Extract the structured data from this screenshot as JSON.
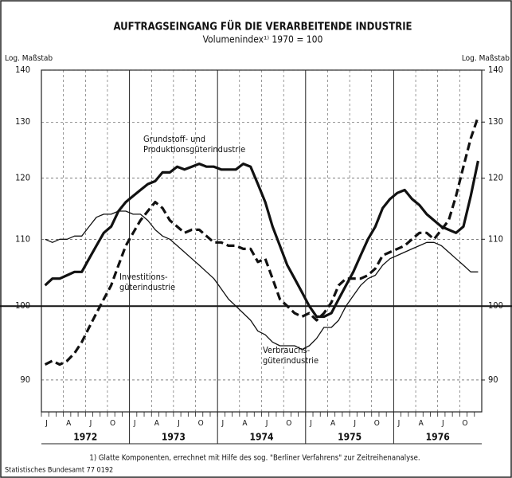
{
  "chart_data": {
    "type": "line",
    "title": "AUFTRAGSEINGANG FÜR DIE VERARBEITENDE INDUSTRIE",
    "subtitle": "Volumenindex¹⁾ 1970 = 100",
    "y_label": "Log. Maßstab",
    "y2_label": "Log. Maßstab",
    "log_scale": true,
    "grid": true,
    "categories": [
      "J",
      null,
      null,
      "A",
      null,
      null,
      "J",
      null,
      null,
      "O",
      null,
      null,
      "J",
      null,
      null,
      "A",
      null,
      null,
      "J",
      null,
      null,
      "O",
      null,
      null,
      "J",
      null,
      null,
      "A",
      null,
      null,
      "J",
      null,
      null,
      "O",
      null,
      null,
      "J",
      null,
      null,
      "A",
      null,
      null,
      "J",
      null,
      null,
      "O",
      null,
      null,
      "J",
      null,
      null,
      "A",
      null,
      null,
      "J",
      null,
      null,
      "O",
      null,
      null
    ],
    "years": [
      "1972",
      "1973",
      "1974",
      "1975",
      "1976"
    ],
    "ylim": [
      86,
      140
    ],
    "yticks": [
      90,
      100,
      110,
      120,
      130,
      140
    ],
    "y2lim": [
      86,
      140
    ],
    "y2ticks": [
      90,
      100,
      110,
      120,
      130,
      140
    ],
    "reference_line": 100,
    "series": [
      {
        "color": "#111",
        "width": 3.2,
        "dash": "none",
        "values": [
          103,
          104,
          104,
          104.5,
          105,
          105,
          107,
          109,
          111,
          112,
          114.5,
          116,
          117,
          118,
          119,
          119.5,
          121,
          121,
          122,
          121.5,
          122,
          122.5,
          122,
          122,
          121.5,
          121.5,
          121.5,
          122.5,
          122,
          119,
          116,
          112,
          109,
          106,
          104,
          102,
          100,
          98.5,
          98.5,
          99,
          101,
          103,
          105,
          107.5,
          110,
          112,
          115,
          116.5,
          117.5,
          118,
          116.5,
          115.5,
          114,
          113,
          112,
          111.5,
          111,
          112,
          117,
          123
        ]
      },
      {
        "color": "#111",
        "width": 3.2,
        "dash": "10 5",
        "values": [
          92,
          92.5,
          92,
          92.5,
          93.5,
          95,
          97,
          99,
          101,
          103,
          106,
          109,
          111,
          113,
          114.5,
          116,
          115,
          113,
          112,
          111,
          111.5,
          111.5,
          110.5,
          109.5,
          109.5,
          109,
          109,
          108.5,
          108.5,
          106.5,
          107,
          104,
          101,
          100,
          99,
          98.5,
          99,
          98,
          99,
          100.5,
          103,
          104,
          104,
          104,
          104.5,
          105.5,
          107.5,
          108,
          108.5,
          109,
          110,
          111,
          111,
          110,
          111.5,
          113,
          117,
          122,
          127,
          131
        ]
      },
      {
        "color": "#111",
        "width": 1.3,
        "dash": "none",
        "values": [
          110,
          109.5,
          110,
          110,
          110.5,
          110.5,
          112,
          113.5,
          114,
          114,
          114.5,
          114.5,
          114,
          114,
          113,
          111.5,
          110.5,
          110,
          109,
          108,
          107,
          106,
          105,
          104,
          102.5,
          101,
          100,
          99,
          98,
          96.5,
          96,
          95,
          94.5,
          94.5,
          94.5,
          94,
          94.5,
          95.5,
          97,
          97,
          98,
          100,
          101.5,
          103,
          104,
          104.5,
          106,
          107,
          107.5,
          108,
          108.5,
          109,
          109.5,
          109.5,
          109,
          108,
          107,
          106,
          105,
          105
        ]
      }
    ],
    "annotations": [
      {
        "lines": [
          "Grundstoff- und",
          "Produktionsgüterindustrie"
        ]
      },
      {
        "lines": [
          "Investitions-",
          "güterindustrie"
        ]
      },
      {
        "lines": [
          "Verbrauchs-",
          "güterindustrie"
        ]
      }
    ],
    "footnote": "1) Glatte Komponenten, errechnet mit Hilfe des sog. \"Berliner Verfahrens\" zur Zeitreihenanalyse.",
    "source": "Statistisches Bundesamt 77 0192"
  }
}
